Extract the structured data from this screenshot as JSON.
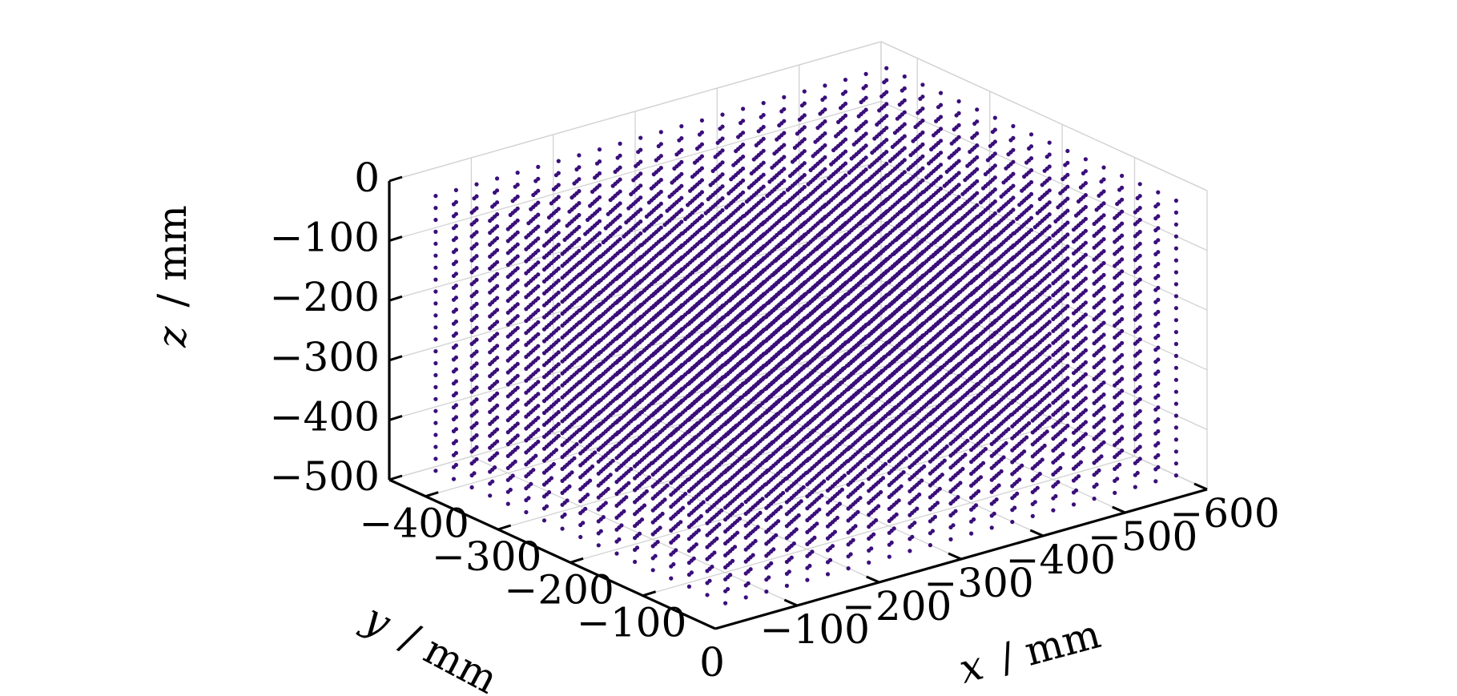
{
  "chart_data": {
    "type": "scatter",
    "projection": "3d",
    "title": "",
    "x_axis": {
      "label_var": "x",
      "label_unit": "/ mm",
      "range": [
        0,
        -600
      ],
      "ticks": [
        {
          "value": -100,
          "label": "−100"
        },
        {
          "value": -200,
          "label": "−200"
        },
        {
          "value": -300,
          "label": "−300"
        },
        {
          "value": -400,
          "label": "−400"
        },
        {
          "value": -500,
          "label": "−500"
        },
        {
          "value": -600,
          "label": "−600"
        }
      ]
    },
    "y_axis": {
      "label_var": "y",
      "label_unit": "/ mm",
      "range": [
        0,
        -450
      ],
      "ticks": [
        {
          "value": -100,
          "label": "−100"
        },
        {
          "value": -200,
          "label": "−200"
        },
        {
          "value": -300,
          "label": "−300"
        },
        {
          "value": -400,
          "label": "−400"
        }
      ]
    },
    "z_axis": {
      "label_var": "z",
      "label_unit": "/ mm",
      "range": [
        -500,
        0
      ],
      "ticks": [
        {
          "value": 0,
          "label": "0"
        },
        {
          "value": -100,
          "label": "−100"
        },
        {
          "value": -200,
          "label": "−200"
        },
        {
          "value": -300,
          "label": "−300"
        },
        {
          "value": -400,
          "label": "−400"
        },
        {
          "value": -500,
          "label": "−500"
        }
      ]
    },
    "origin_label": "0",
    "grid": true,
    "series": [
      {
        "marker_color": "#3a0f7a",
        "grid_points": {
          "x": {
            "start": -30,
            "stop": -580,
            "step": 25
          },
          "y": {
            "start": -20,
            "stop": -430,
            "step": 25
          },
          "z": {
            "start": -20,
            "stop": -480,
            "step": 20
          }
        }
      }
    ]
  }
}
